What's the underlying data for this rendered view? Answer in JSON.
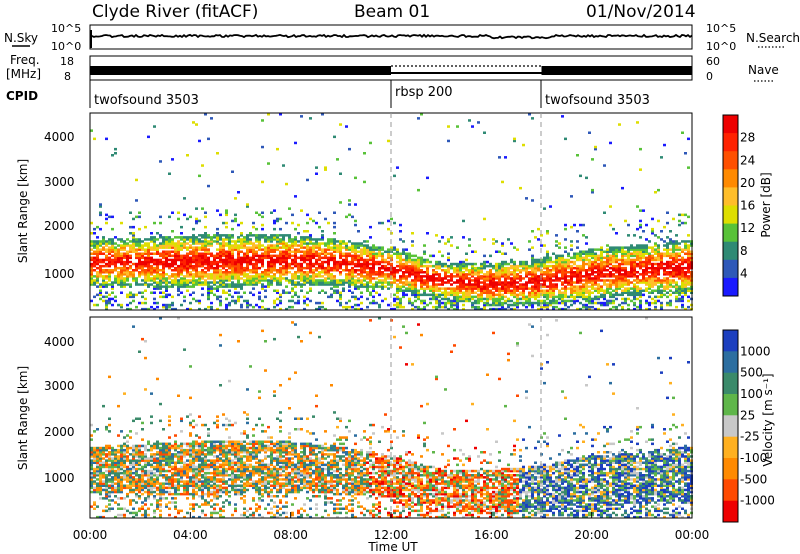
{
  "header": {
    "station": "Clyde River (fitACF)",
    "beam": "Beam 01",
    "date": "01/Nov/2014"
  },
  "params_panel": {
    "nsky_label": "N.Sky",
    "nsearch_label": "N.Search",
    "nsky_ticks": [
      "10^5",
      "10^0"
    ],
    "nsearch_ticks": [
      "10^5",
      "10^0"
    ],
    "freq_label_1": "Freq.",
    "freq_label_2": "[MHz]",
    "freq_ticks": [
      "18",
      "8"
    ],
    "nave_label": "Nave",
    "nave_ticks": [
      "60",
      "0"
    ],
    "cpid_label": "CPID",
    "cpid_segments": [
      {
        "name": "twofsound 3503",
        "start_hour": 0,
        "end_hour": 12
      },
      {
        "name": "rbsp 200",
        "start_hour": 12,
        "end_hour": 18
      },
      {
        "name": "twofsound 3503",
        "start_hour": 18,
        "end_hour": 24
      }
    ]
  },
  "chart_data": [
    {
      "type": "heatmap",
      "panel": "power",
      "ylabel": "Slant Range [km]",
      "xlabel": "",
      "colorbar_label": "Power [dB]",
      "colorbar_ticks": [
        "4",
        "8",
        "12",
        "16",
        "20",
        "24",
        "28"
      ],
      "colorbar_colors": [
        "#1a1aff",
        "#2e58b8",
        "#2f8a74",
        "#58c238",
        "#dede00",
        "#ffbe2a",
        "#ff8a00",
        "#ff5000",
        "#ff2200",
        "#ee0000"
      ],
      "y_ticks": [
        "1000",
        "2000",
        "3000",
        "4000"
      ],
      "x_range_hours": [
        0,
        24
      ],
      "y_range_km": [
        180,
        4500
      ],
      "main_echo_band_km": [
        {
          "hour": 0,
          "low": 700,
          "high": 1700
        },
        {
          "hour": 4,
          "low": 650,
          "high": 1800
        },
        {
          "hour": 8,
          "low": 700,
          "high": 1800
        },
        {
          "hour": 10,
          "low": 700,
          "high": 1700
        },
        {
          "hour": 12,
          "low": 600,
          "high": 1500
        },
        {
          "hour": 14,
          "low": 400,
          "high": 1200
        },
        {
          "hour": 16,
          "low": 250,
          "high": 1200
        },
        {
          "hour": 18,
          "low": 300,
          "high": 1300
        },
        {
          "hour": 20,
          "low": 400,
          "high": 1500
        },
        {
          "hour": 22,
          "low": 500,
          "high": 1600
        },
        {
          "hour": 24,
          "low": 500,
          "high": 1700
        }
      ]
    },
    {
      "type": "heatmap",
      "panel": "velocity",
      "ylabel": "Slant Range [km]",
      "xlabel": "Time UT",
      "colorbar_label": "Velocity [m s⁻¹]",
      "colorbar_ticks": [
        "1000",
        "500",
        "100",
        "25",
        "-25",
        "-100",
        "-500",
        "-1000"
      ],
      "colorbar_colors": [
        "#1c3fbf",
        "#2c6ea0",
        "#3a8a6a",
        "#5fb64a",
        "#c8c8c8",
        "#ffb020",
        "#ff8a00",
        "#ff4a00",
        "#ee0000"
      ],
      "x_ticks": [
        "00:00",
        "04:00",
        "08:00",
        "12:00",
        "16:00",
        "20:00",
        "00:00"
      ],
      "y_ticks": [
        "1000",
        "2000",
        "3000",
        "4000"
      ],
      "x_range_hours": [
        0,
        24
      ],
      "y_range_km": [
        180,
        4500
      ]
    }
  ]
}
